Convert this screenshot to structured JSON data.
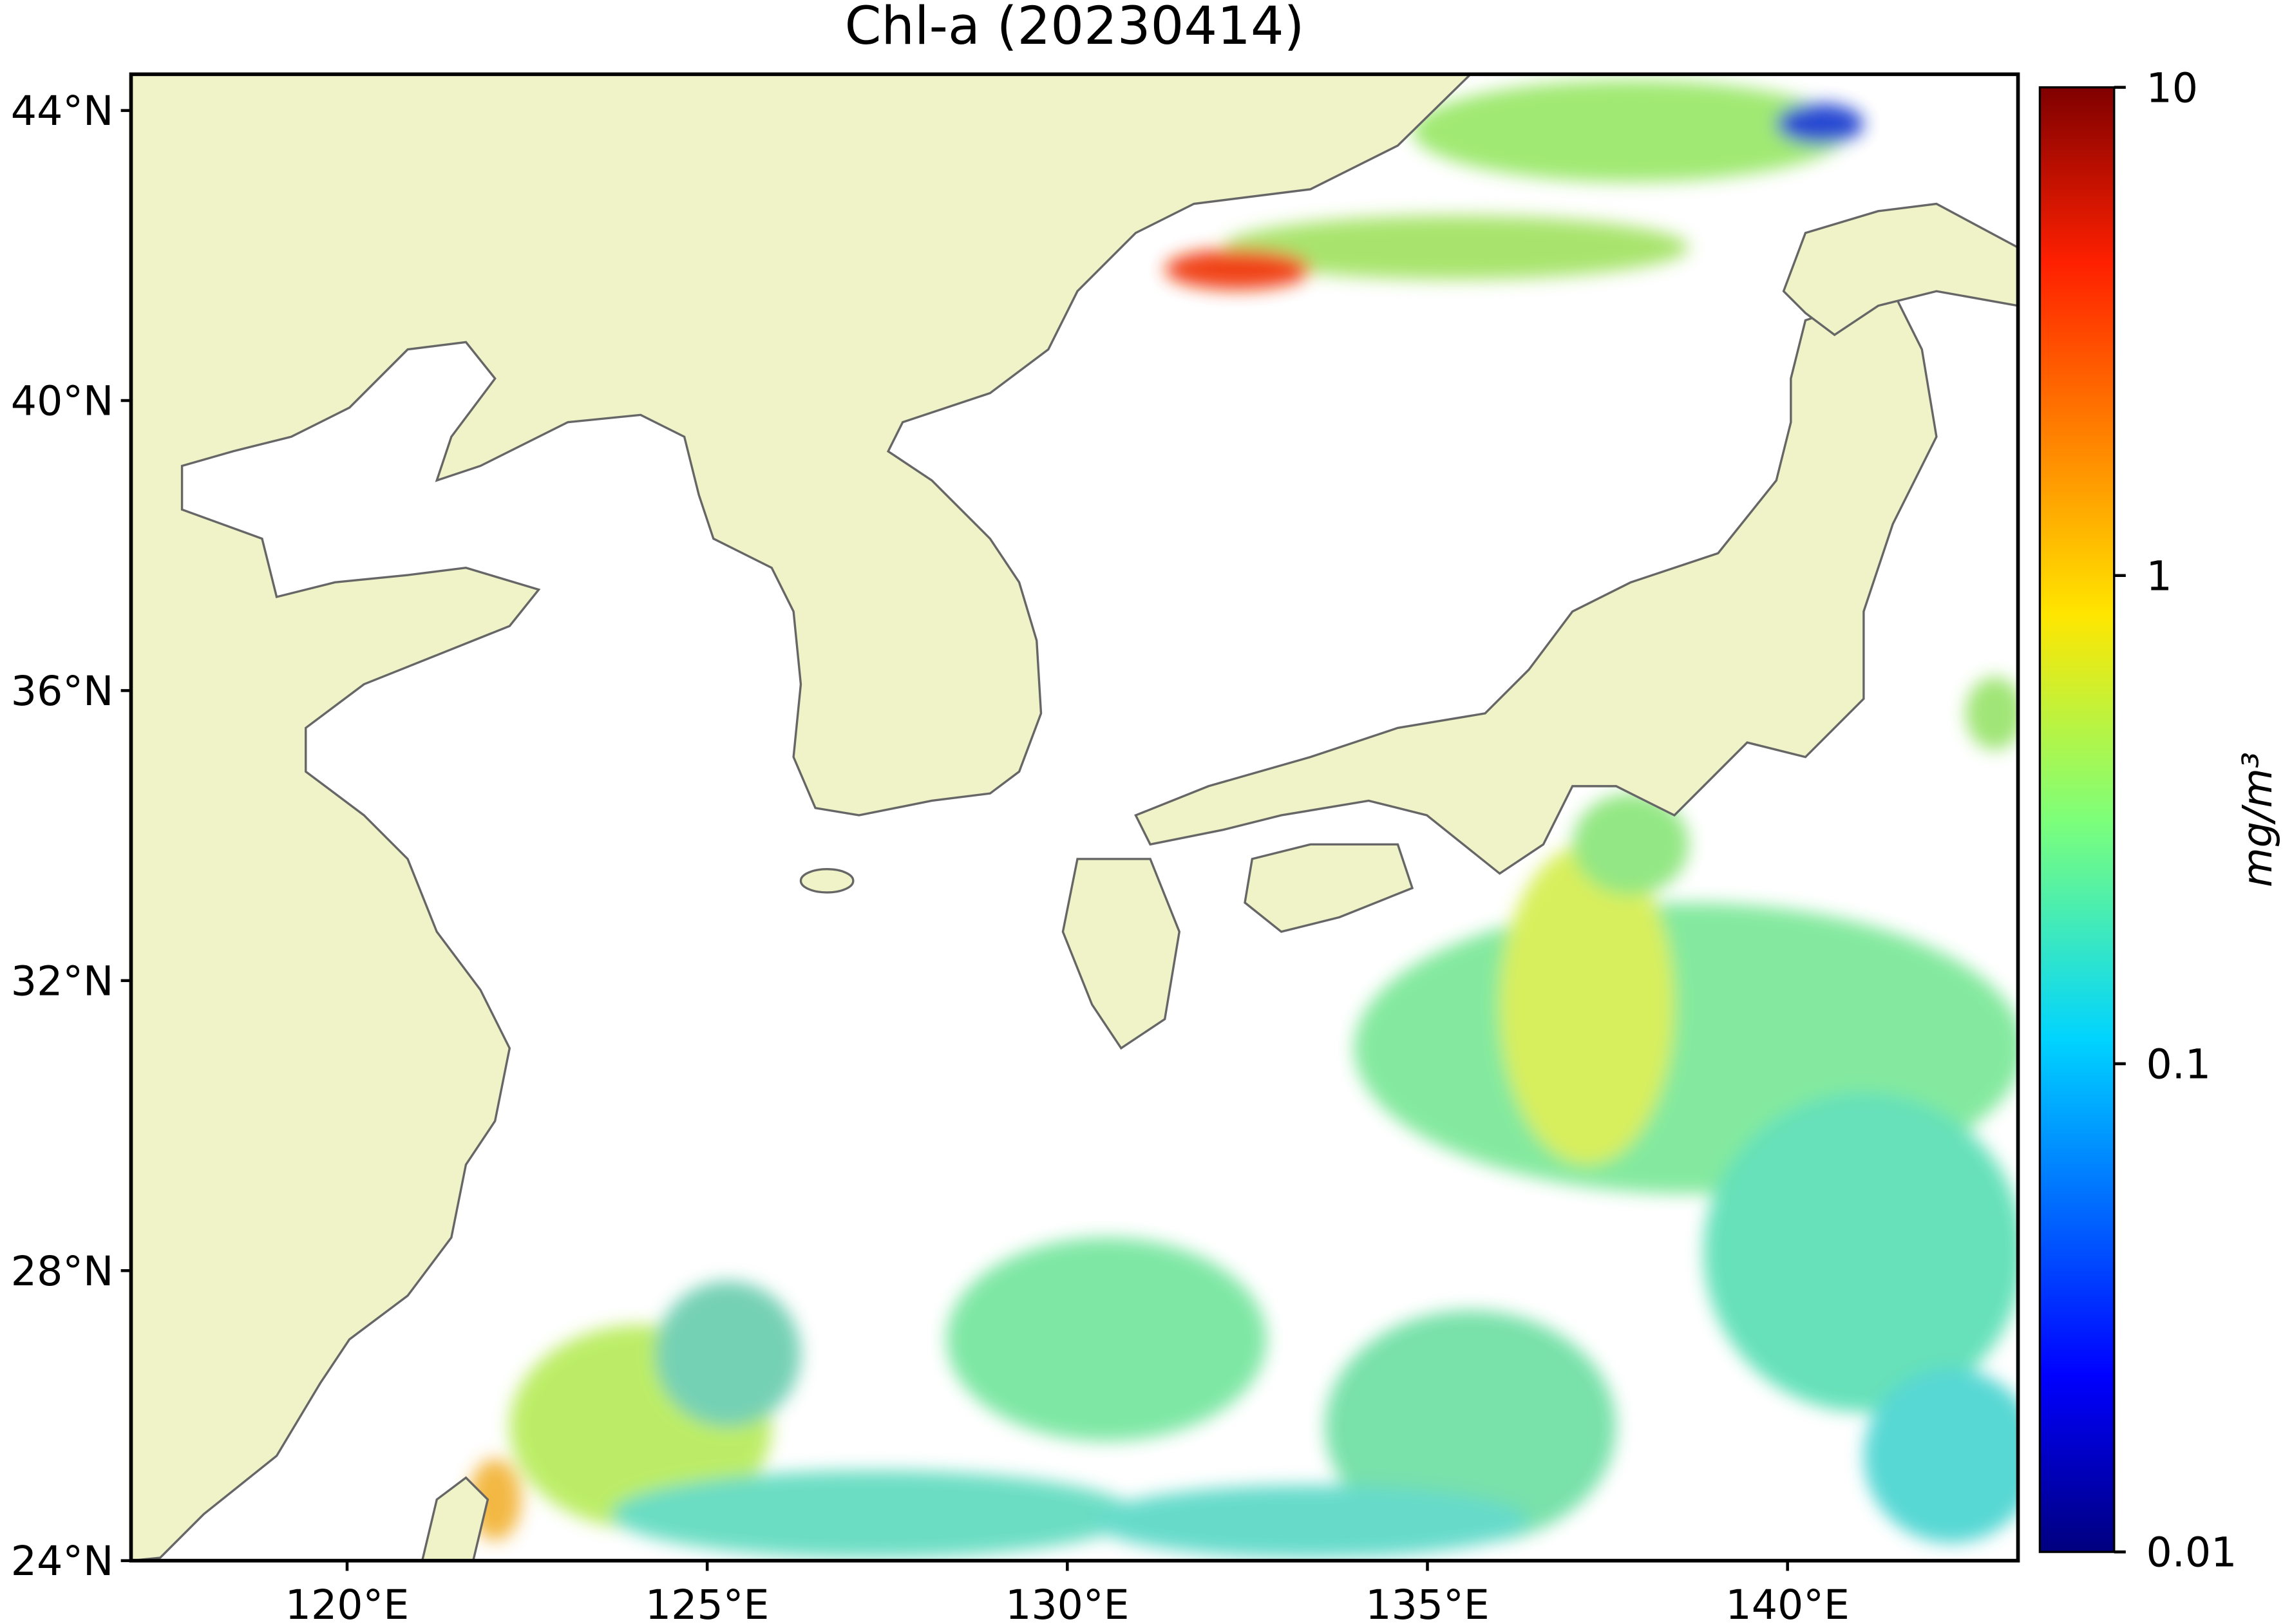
{
  "chart_data": {
    "type": "map",
    "title": "Chl-a (20230414)",
    "xlim": [
      117,
      143.2
    ],
    "ylim": [
      24,
      44.5
    ],
    "xticks": [
      {
        "value": 120,
        "label": "120°E"
      },
      {
        "value": 125,
        "label": "125°E"
      },
      {
        "value": 130,
        "label": "130°E"
      },
      {
        "value": 135,
        "label": "135°E"
      },
      {
        "value": 140,
        "label": "140°E"
      }
    ],
    "yticks": [
      {
        "value": 24,
        "label": "24°N"
      },
      {
        "value": 28,
        "label": "28°N"
      },
      {
        "value": 32,
        "label": "32°N"
      },
      {
        "value": 36,
        "label": "36°N"
      },
      {
        "value": 40,
        "label": "40°N"
      },
      {
        "value": 44,
        "label": "44°N"
      }
    ],
    "colorbar": {
      "label": "mg/m³",
      "scale": "log",
      "lim": [
        0.01,
        10
      ],
      "ticks": [
        0.01,
        0.1,
        1,
        10
      ],
      "colormap": "jet"
    },
    "land_color": "#eff3c7"
  }
}
